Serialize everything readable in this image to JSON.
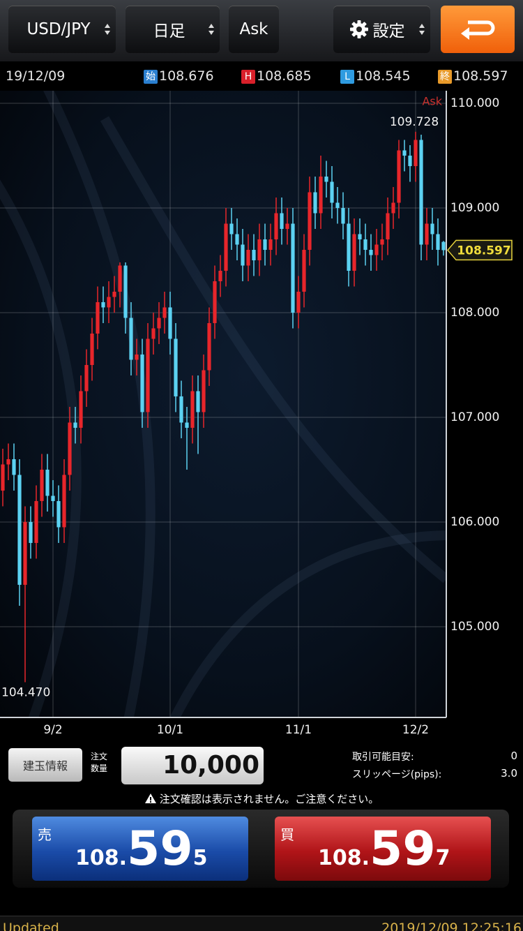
{
  "header": {
    "symbol": "USD/JPY",
    "timeframe": "日足",
    "price_side": "Ask",
    "settings": "設定"
  },
  "info_bar": {
    "date": "19/12/09",
    "items": [
      {
        "label": "始",
        "value": "108.676"
      },
      {
        "label": "H",
        "value": "108.685"
      },
      {
        "label": "L",
        "value": "108.545"
      },
      {
        "label": "終",
        "value": "108.597"
      }
    ]
  },
  "chart_data": {
    "type": "candlestick",
    "corner_label": "Ask",
    "categories": [
      null,
      null,
      null,
      null,
      null,
      null,
      null,
      null,
      null,
      "9/2",
      null,
      null,
      null,
      null,
      null,
      null,
      null,
      null,
      null,
      null,
      null,
      null,
      null,
      null,
      null,
      null,
      null,
      null,
      null,
      null,
      "10/1",
      null,
      null,
      null,
      null,
      null,
      null,
      null,
      null,
      null,
      null,
      null,
      null,
      null,
      null,
      null,
      null,
      null,
      null,
      null,
      null,
      null,
      null,
      "11/1",
      null,
      null,
      null,
      null,
      null,
      null,
      null,
      null,
      null,
      null,
      null,
      null,
      null,
      null,
      null,
      null,
      null,
      null,
      null,
      null,
      "12/2",
      null,
      null,
      null,
      null,
      null
    ],
    "open": [
      106.3,
      106.55,
      106.6,
      106.45,
      105.4,
      106.0,
      105.8,
      106.2,
      106.5,
      106.25,
      106.2,
      105.95,
      106.45,
      106.95,
      106.9,
      107.25,
      107.5,
      107.8,
      108.1,
      108.05,
      108.15,
      108.2,
      108.45,
      107.95,
      107.55,
      107.6,
      107.05,
      107.75,
      107.85,
      107.95,
      108.05,
      107.75,
      107.2,
      106.95,
      106.9,
      107.25,
      107.05,
      107.45,
      107.9,
      108.3,
      108.4,
      108.85,
      108.75,
      108.65,
      108.45,
      108.6,
      108.5,
      108.7,
      108.6,
      108.7,
      108.95,
      108.8,
      108.85,
      108.0,
      108.2,
      108.6,
      109.15,
      108.95,
      109.3,
      109.25,
      109.05,
      109.0,
      108.85,
      108.4,
      108.75,
      108.7,
      108.6,
      108.55,
      108.65,
      108.7,
      108.95,
      109.05,
      109.55,
      109.5,
      109.4,
      109.65,
      108.65,
      108.85,
      108.75,
      108.676
    ],
    "high": [
      106.7,
      106.75,
      106.75,
      106.6,
      106.15,
      106.15,
      106.35,
      106.65,
      106.65,
      106.4,
      106.35,
      106.6,
      107.1,
      107.1,
      107.4,
      107.65,
      107.95,
      108.25,
      108.25,
      108.3,
      108.35,
      108.48,
      108.48,
      108.1,
      107.75,
      107.75,
      107.9,
      108.0,
      108.1,
      108.2,
      108.2,
      107.9,
      107.35,
      107.1,
      107.4,
      107.4,
      107.6,
      108.05,
      108.45,
      108.55,
      109.0,
      109.0,
      108.9,
      108.8,
      108.75,
      108.75,
      108.85,
      108.85,
      108.85,
      109.1,
      109.1,
      109.0,
      109.0,
      108.35,
      108.75,
      109.3,
      109.3,
      109.5,
      109.45,
      109.4,
      109.2,
      109.15,
      109.0,
      108.9,
      108.9,
      108.85,
      108.75,
      108.8,
      108.85,
      109.1,
      109.2,
      109.65,
      109.65,
      109.6,
      109.728,
      109.7,
      109.0,
      109.0,
      108.9,
      108.685
    ],
    "low": [
      106.15,
      106.4,
      106.3,
      105.2,
      104.47,
      105.65,
      105.65,
      106.05,
      106.1,
      106.05,
      105.8,
      105.8,
      106.3,
      106.75,
      106.75,
      107.1,
      107.35,
      107.65,
      107.9,
      107.9,
      108.0,
      108.05,
      107.8,
      107.4,
      107.4,
      106.9,
      106.9,
      107.6,
      107.7,
      107.8,
      107.6,
      107.05,
      106.8,
      106.5,
      106.75,
      106.65,
      106.9,
      107.3,
      107.75,
      108.15,
      108.25,
      108.6,
      108.5,
      108.3,
      108.3,
      108.35,
      108.35,
      108.45,
      108.45,
      108.55,
      108.65,
      108.65,
      107.85,
      107.85,
      108.05,
      108.45,
      108.8,
      108.8,
      109.1,
      108.9,
      108.85,
      108.7,
      108.25,
      108.25,
      108.55,
      108.45,
      108.4,
      108.4,
      108.5,
      108.55,
      108.8,
      108.9,
      109.35,
      109.25,
      109.25,
      108.5,
      108.5,
      108.6,
      108.45,
      108.545
    ],
    "close": [
      106.55,
      106.6,
      106.45,
      105.4,
      106.0,
      105.8,
      106.2,
      106.5,
      106.25,
      106.2,
      105.95,
      106.45,
      106.95,
      106.9,
      107.25,
      107.5,
      107.8,
      108.1,
      108.05,
      108.15,
      108.2,
      108.45,
      107.95,
      107.55,
      107.6,
      107.05,
      107.75,
      107.85,
      107.95,
      108.05,
      107.75,
      107.2,
      106.95,
      106.9,
      107.25,
      107.05,
      107.45,
      107.9,
      108.3,
      108.4,
      108.85,
      108.75,
      108.65,
      108.45,
      108.6,
      108.5,
      108.7,
      108.6,
      108.7,
      108.95,
      108.8,
      108.85,
      108.0,
      108.2,
      108.6,
      109.15,
      108.95,
      109.3,
      109.25,
      109.05,
      109.0,
      108.85,
      108.4,
      108.75,
      108.7,
      108.6,
      108.55,
      108.65,
      108.7,
      108.95,
      109.05,
      109.55,
      109.5,
      109.4,
      109.65,
      108.65,
      108.85,
      108.75,
      108.6,
      108.597
    ],
    "up_color": "#e8262b",
    "down_color": "#5cd2f2",
    "ylim": [
      104.133,
      110.12
    ],
    "yticks": [
      {
        "value": 105,
        "label": "105.000"
      },
      {
        "value": 106,
        "label": "106.000"
      },
      {
        "value": 107,
        "label": "107.000"
      },
      {
        "value": 108,
        "label": "108.000"
      },
      {
        "value": 109,
        "label": "109.000"
      },
      {
        "value": 110,
        "label": "110.000"
      }
    ],
    "grid": true,
    "max_label": 109.728,
    "min_label": {
      "value": 104.47,
      "label": "104.470"
    },
    "last_price": 108.597
  },
  "order": {
    "position_button": "建玉情報",
    "quantity_label": [
      "注文",
      "数量"
    ],
    "quantity": "10,000",
    "available_label": "取引可能目安:",
    "available": "0",
    "slippage_label": "スリッページ(pips):",
    "slippage": "3.0",
    "warning": "注文確認は表示されません。ご注意ください。",
    "sell": {
      "label": "売",
      "big": "108.",
      "pips": "59",
      "tail": "5"
    },
    "buy": {
      "label": "買",
      "big": "108.",
      "pips": "59",
      "tail": "7"
    }
  },
  "footer": {
    "status": "Updated",
    "timestamp": "2019/12/09 12:25:16"
  }
}
